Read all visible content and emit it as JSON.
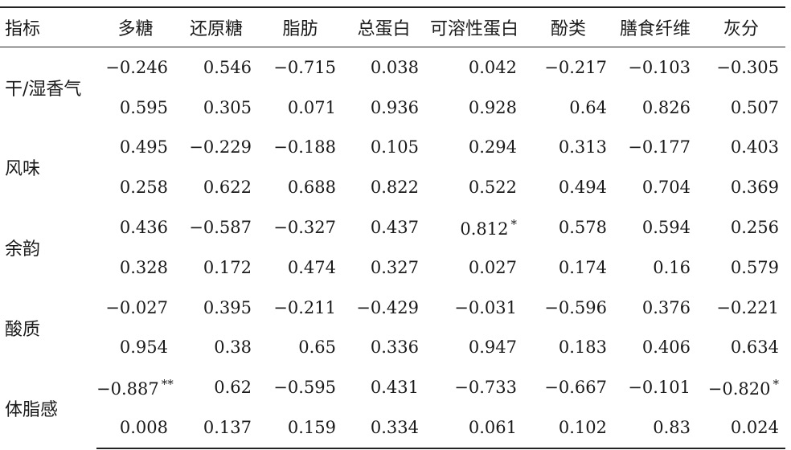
{
  "table": {
    "headers": [
      "指标",
      "多糖",
      "还原糖",
      "脂肪",
      "总蛋白",
      "可溶性蛋白",
      "酚类",
      "膳食纤维",
      "灰分"
    ],
    "groups": [
      {
        "name": "干/湿香气",
        "r": [
          "−0.246",
          "0.546",
          "−0.715",
          "0.038",
          "0.042",
          "−0.217",
          "−0.103",
          "−0.305"
        ],
        "p": [
          "0.595",
          "0.305",
          "0.071",
          "0.936",
          "0.928",
          "0.64",
          "0.826",
          "0.507"
        ],
        "sig": [
          "",
          "",
          "",
          "",
          "",
          "",
          "",
          ""
        ]
      },
      {
        "name": "风味",
        "r": [
          "0.495",
          "−0.229",
          "−0.188",
          "0.105",
          "0.294",
          "0.313",
          "−0.177",
          "0.403"
        ],
        "p": [
          "0.258",
          "0.622",
          "0.688",
          "0.822",
          "0.522",
          "0.494",
          "0.704",
          "0.369"
        ],
        "sig": [
          "",
          "",
          "",
          "",
          "",
          "",
          "",
          ""
        ]
      },
      {
        "name": "余韵",
        "r": [
          "0.436",
          "−0.587",
          "−0.327",
          "0.437",
          "0.812",
          "0.578",
          "0.594",
          "0.256"
        ],
        "p": [
          "0.328",
          "0.172",
          "0.474",
          "0.327",
          "0.027",
          "0.174",
          "0.16",
          "0.579"
        ],
        "sig": [
          "",
          "",
          "",
          "",
          "*",
          "",
          "",
          ""
        ]
      },
      {
        "name": "酸质",
        "r": [
          "−0.027",
          "0.395",
          "−0.211",
          "−0.429",
          "−0.031",
          "−0.596",
          "0.376",
          "−0.221"
        ],
        "p": [
          "0.954",
          "0.38",
          "0.65",
          "0.336",
          "0.947",
          "0.183",
          "0.406",
          "0.634"
        ],
        "sig": [
          "",
          "",
          "",
          "",
          "",
          "",
          "",
          ""
        ]
      },
      {
        "name": "体脂感",
        "r": [
          "−0.887",
          "0.62",
          "−0.595",
          "0.431",
          "−0.733",
          "−0.667",
          "−0.101",
          "−0.820"
        ],
        "p": [
          "0.008",
          "0.137",
          "0.159",
          "0.334",
          "0.061",
          "0.102",
          "0.83",
          "0.024"
        ],
        "sig": [
          "**",
          "",
          "",
          "",
          "",
          "",
          "",
          "*"
        ]
      }
    ]
  }
}
